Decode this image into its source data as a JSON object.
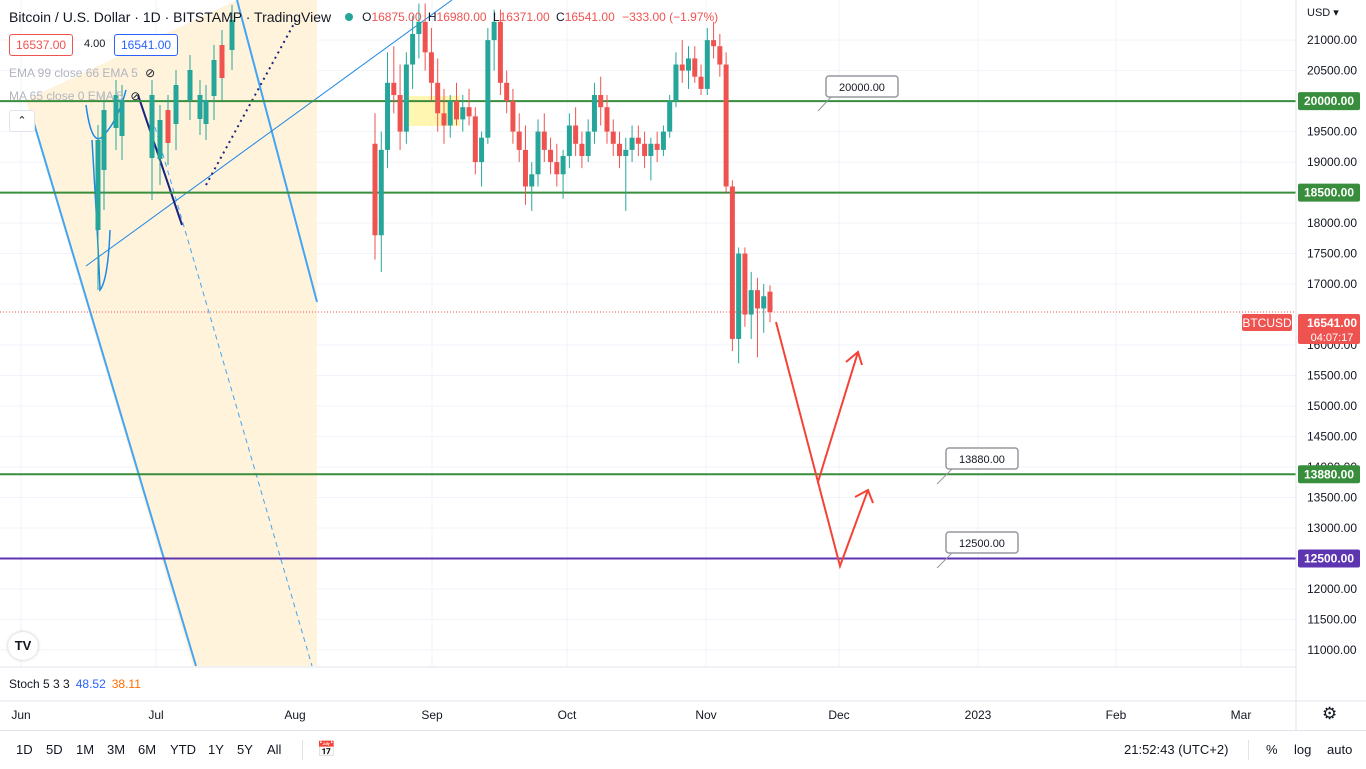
{
  "legend": {
    "title": "Bitcoin / U.S. Dollar · 1D · BITSTAMP · TradingView",
    "o_key": "O",
    "o_val": "16875.00",
    "h_key": "H",
    "h_val": "16980.00",
    "l_key": "L",
    "l_val": "16371.00",
    "c_key": "C",
    "c_val": "16541.00",
    "change": "−333.00 (−1.97%)"
  },
  "sell_price": "16537.00",
  "spread": "4.00",
  "buy_price": "16541.00",
  "indicators": [
    {
      "label": "EMA 99 close 66 EMA 5"
    },
    {
      "label": "MA 65 close 0 EMA 5"
    }
  ],
  "collapse_icon": "chevron-up-icon",
  "stoch": {
    "label": "Stoch 5 3 3",
    "k": "48.52",
    "d": "38.11"
  },
  "currency": "USD",
  "price_axis": {
    "min": 10800,
    "max": 21600,
    "labels": [
      "21000.00",
      "20500.00",
      "19500.00",
      "19000.00",
      "18000.00",
      "17500.00",
      "17000.00",
      "16000.00",
      "15500.00",
      "15000.00",
      "14500.00",
      "14000.00",
      "13500.00",
      "13000.00",
      "12000.00",
      "11500.00",
      "11000.00"
    ],
    "values": [
      21000,
      20500,
      19500,
      19000,
      18000,
      17500,
      17000,
      16000,
      15500,
      15000,
      14500,
      14000,
      13500,
      13000,
      12000,
      11500,
      11000
    ]
  },
  "levels": [
    {
      "value": 20000,
      "label": "20000.00",
      "color": "#388e3c"
    },
    {
      "value": 18500,
      "label": "18500.00",
      "color": "#388e3c"
    },
    {
      "value": 13880,
      "label": "13880.00",
      "color": "#388e3c"
    },
    {
      "value": 12500,
      "label": "12500.00",
      "color": "#5e35b1"
    }
  ],
  "callouts": [
    {
      "label": "20000.00"
    },
    {
      "label": "13880.00"
    },
    {
      "label": "12500.00"
    }
  ],
  "current": {
    "symbol": "BTCUSD",
    "price": "16541.00",
    "countdown": "04:07:17",
    "value": 16541,
    "color": "#ef5350"
  },
  "time_axis": [
    "Jun",
    "Jul",
    "Aug",
    "Sep",
    "Oct",
    "Nov",
    "Dec",
    "2023",
    "Feb",
    "Mar"
  ],
  "ranges": [
    "1D",
    "5D",
    "1M",
    "3M",
    "6M",
    "YTD",
    "1Y",
    "5Y",
    "All"
  ],
  "calendar_icon": "calendar-range-icon",
  "clock": "21:52:43 (UTC+2)",
  "options": [
    "%",
    "log",
    "auto"
  ],
  "settings_icon": "gear-icon",
  "logo_text": "TV",
  "colors": {
    "up": "#26a69a",
    "down": "#ef5350",
    "trend": "#1e88e5",
    "forecast": "#f44336",
    "channel": "#fff3dc"
  },
  "chart_data": {
    "type": "candlestick",
    "symbol": "BTCUSD",
    "interval": "1D",
    "ylim": [
      10800,
      21600
    ],
    "last": {
      "open": 16875,
      "high": 16980,
      "low": 16371,
      "close": 16541
    },
    "candles": [
      {
        "o": 19300,
        "h": 19800,
        "l": 17400,
        "c": 17800
      },
      {
        "o": 17800,
        "h": 19500,
        "l": 17200,
        "c": 19200
      },
      {
        "o": 19200,
        "h": 20800,
        "l": 18900,
        "c": 20300
      },
      {
        "o": 20300,
        "h": 20900,
        "l": 19800,
        "c": 20100
      },
      {
        "o": 20100,
        "h": 20600,
        "l": 19200,
        "c": 19500
      },
      {
        "o": 19500,
        "h": 20800,
        "l": 19300,
        "c": 20600
      },
      {
        "o": 20600,
        "h": 21400,
        "l": 20200,
        "c": 21100
      },
      {
        "o": 21100,
        "h": 21600,
        "l": 20700,
        "c": 21300
      },
      {
        "o": 21300,
        "h": 21600,
        "l": 20500,
        "c": 20800
      },
      {
        "o": 20800,
        "h": 21200,
        "l": 20000,
        "c": 20300
      },
      {
        "o": 20300,
        "h": 20700,
        "l": 19500,
        "c": 19800
      },
      {
        "o": 19800,
        "h": 20200,
        "l": 19300,
        "c": 19600
      },
      {
        "o": 19600,
        "h": 20100,
        "l": 19400,
        "c": 20000
      },
      {
        "o": 20000,
        "h": 20300,
        "l": 19600,
        "c": 19700
      },
      {
        "o": 19700,
        "h": 20100,
        "l": 19500,
        "c": 19900
      },
      {
        "o": 19900,
        "h": 20200,
        "l": 19600,
        "c": 19750
      },
      {
        "o": 19750,
        "h": 19900,
        "l": 18800,
        "c": 19000
      },
      {
        "o": 19000,
        "h": 19500,
        "l": 18600,
        "c": 19400
      },
      {
        "o": 19400,
        "h": 21200,
        "l": 19300,
        "c": 21000
      },
      {
        "o": 21000,
        "h": 21500,
        "l": 20500,
        "c": 21300
      },
      {
        "o": 21300,
        "h": 21500,
        "l": 20100,
        "c": 20300
      },
      {
        "o": 20300,
        "h": 20500,
        "l": 19800,
        "c": 20000
      },
      {
        "o": 20000,
        "h": 20200,
        "l": 19300,
        "c": 19500
      },
      {
        "o": 19500,
        "h": 19800,
        "l": 19000,
        "c": 19200
      },
      {
        "o": 19200,
        "h": 19600,
        "l": 18300,
        "c": 18600
      },
      {
        "o": 18600,
        "h": 19000,
        "l": 18200,
        "c": 18800
      },
      {
        "o": 18800,
        "h": 19700,
        "l": 18600,
        "c": 19500
      },
      {
        "o": 19500,
        "h": 19800,
        "l": 19000,
        "c": 19200
      },
      {
        "o": 19200,
        "h": 19400,
        "l": 18800,
        "c": 19000
      },
      {
        "o": 19000,
        "h": 19300,
        "l": 18600,
        "c": 18800
      },
      {
        "o": 18800,
        "h": 19200,
        "l": 18400,
        "c": 19100
      },
      {
        "o": 19100,
        "h": 19800,
        "l": 18900,
        "c": 19600
      },
      {
        "o": 19600,
        "h": 19900,
        "l": 19100,
        "c": 19300
      },
      {
        "o": 19300,
        "h": 19500,
        "l": 18900,
        "c": 19100
      },
      {
        "o": 19100,
        "h": 19700,
        "l": 19000,
        "c": 19500
      },
      {
        "o": 19500,
        "h": 20300,
        "l": 19300,
        "c": 20100
      },
      {
        "o": 20100,
        "h": 20400,
        "l": 19600,
        "c": 19900
      },
      {
        "o": 19900,
        "h": 20100,
        "l": 19300,
        "c": 19500
      },
      {
        "o": 19500,
        "h": 19700,
        "l": 19100,
        "c": 19300
      },
      {
        "o": 19300,
        "h": 19500,
        "l": 18900,
        "c": 19100
      },
      {
        "o": 19100,
        "h": 19400,
        "l": 18200,
        "c": 19200
      },
      {
        "o": 19200,
        "h": 19600,
        "l": 19000,
        "c": 19400
      },
      {
        "o": 19400,
        "h": 19600,
        "l": 19100,
        "c": 19300
      },
      {
        "o": 19300,
        "h": 19500,
        "l": 18900,
        "c": 19100
      },
      {
        "o": 19100,
        "h": 19400,
        "l": 18700,
        "c": 19300
      },
      {
        "o": 19300,
        "h": 19500,
        "l": 19000,
        "c": 19200
      },
      {
        "o": 19200,
        "h": 19600,
        "l": 19100,
        "c": 19500
      },
      {
        "o": 19500,
        "h": 20100,
        "l": 19400,
        "c": 20000
      },
      {
        "o": 20000,
        "h": 20800,
        "l": 19900,
        "c": 20600
      },
      {
        "o": 20600,
        "h": 21000,
        "l": 20300,
        "c": 20500
      },
      {
        "o": 20500,
        "h": 20900,
        "l": 20200,
        "c": 20700
      },
      {
        "o": 20700,
        "h": 20900,
        "l": 20300,
        "c": 20400
      },
      {
        "o": 20400,
        "h": 20600,
        "l": 20100,
        "c": 20200
      },
      {
        "o": 20200,
        "h": 21200,
        "l": 20100,
        "c": 21000
      },
      {
        "o": 21000,
        "h": 21300,
        "l": 20700,
        "c": 20900
      },
      {
        "o": 20900,
        "h": 21100,
        "l": 20400,
        "c": 20600
      },
      {
        "o": 20600,
        "h": 20800,
        "l": 18500,
        "c": 18600
      },
      {
        "o": 18600,
        "h": 18700,
        "l": 15900,
        "c": 16100
      },
      {
        "o": 16100,
        "h": 17600,
        "l": 15700,
        "c": 17500
      },
      {
        "o": 17500,
        "h": 17600,
        "l": 16300,
        "c": 16500
      },
      {
        "o": 16500,
        "h": 17200,
        "l": 16100,
        "c": 16900
      },
      {
        "o": 16900,
        "h": 17100,
        "l": 15800,
        "c": 16600
      },
      {
        "o": 16600,
        "h": 17000,
        "l": 16200,
        "c": 16800
      },
      {
        "o": 16875,
        "h": 16980,
        "l": 16371,
        "c": 16541
      }
    ]
  }
}
